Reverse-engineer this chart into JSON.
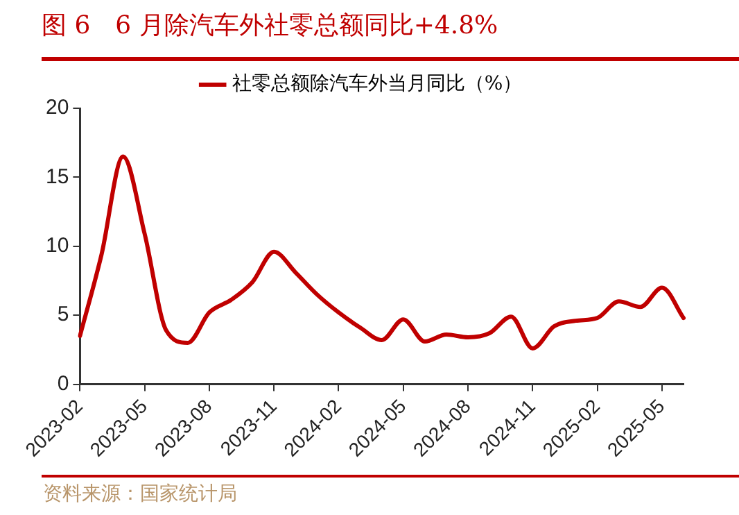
{
  "chart_data": {
    "type": "line",
    "title": "图 6　6 月除汽车外社零总额同比+4.8%",
    "categories": [
      "2023-02",
      null,
      null,
      "2023-05",
      null,
      null,
      "2023-08",
      null,
      null,
      "2023-11",
      null,
      null,
      "2024-02",
      null,
      null,
      "2024-05",
      null,
      null,
      "2024-08",
      null,
      null,
      "2024-11",
      null,
      null,
      "2025-02",
      null,
      null,
      "2025-05",
      null
    ],
    "series": [
      {
        "name": "社零总额除汽车外当月同比（%）",
        "color": "#c00000",
        "values": [
          3.5,
          9.4,
          16.5,
          10.9,
          3.9,
          3.0,
          5.2,
          6.1,
          7.4,
          9.6,
          8.1,
          6.5,
          5.2,
          4.1,
          3.2,
          4.7,
          3.1,
          3.6,
          3.4,
          3.7,
          4.9,
          2.6,
          4.2,
          4.6,
          4.8,
          6.0,
          5.6,
          7.0,
          4.8
        ]
      }
    ],
    "ylim": [
      0,
      20
    ],
    "yticks": [
      0,
      5,
      10,
      15,
      20
    ],
    "grid": false,
    "legend": "top",
    "marker": "none",
    "line_style": "solid",
    "annotations": [
      "资料来源：国家统计局"
    ]
  }
}
